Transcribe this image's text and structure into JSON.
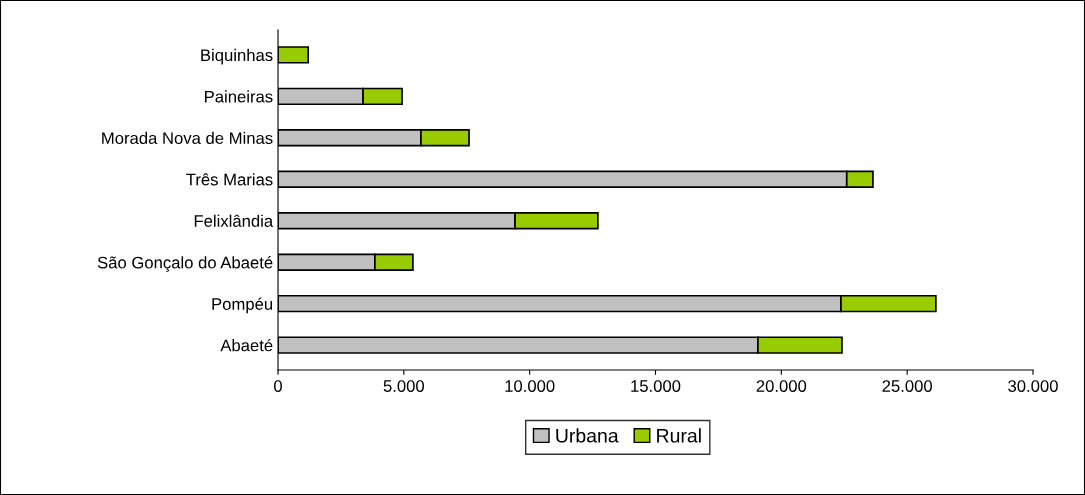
{
  "chart_data": {
    "type": "bar",
    "orientation": "horizontal",
    "stacked": true,
    "categories": [
      "Biquinhas",
      "Paineiras",
      "Morada Nova de Minas",
      "Três Marias",
      "Felixlândia",
      "São Gonçalo do Abaeté",
      "Pompéu",
      "Abaeté"
    ],
    "series": [
      {
        "name": "Urbana",
        "color": "#c0c0c0",
        "values": [
          0,
          3380,
          5680,
          22600,
          9420,
          3850,
          22370,
          19070
        ]
      },
      {
        "name": "Rural",
        "color": "#99cc00",
        "values": [
          1200,
          1550,
          1910,
          1040,
          3290,
          1510,
          3770,
          3340
        ]
      }
    ],
    "xlim": [
      0,
      30000
    ],
    "xticks": [
      0,
      {
        "value": 5000,
        "label": "5.000"
      },
      {
        "value": 10000,
        "label": "10.000"
      },
      {
        "value": 15000,
        "label": "15.000"
      },
      {
        "value": 20000,
        "label": "20.000"
      },
      {
        "value": 25000,
        "label": "25.000"
      },
      {
        "value": 30000,
        "label": "30.000"
      }
    ],
    "grid": false,
    "legend": "bottom"
  }
}
